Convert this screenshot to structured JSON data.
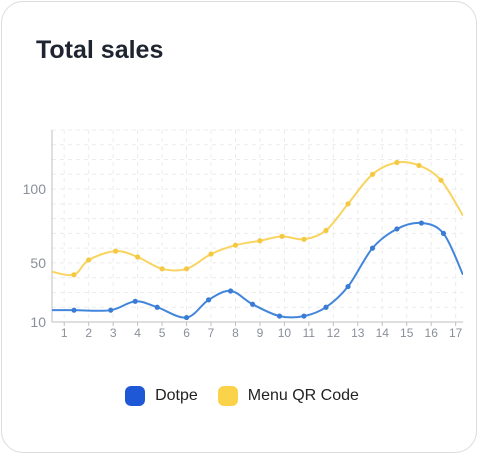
{
  "card": {
    "title": "Total sales"
  },
  "chart_data": {
    "type": "line",
    "title": "Total sales",
    "x": [
      1,
      2,
      3,
      4,
      5,
      6,
      7,
      8,
      9,
      10,
      11,
      12,
      13,
      14,
      15,
      16,
      17
    ],
    "ylim": [
      10,
      140
    ],
    "yticks": [
      10,
      50,
      100
    ],
    "grid": true,
    "legend": "bottom",
    "smooth": true,
    "series": [
      {
        "name": "Dotpe",
        "color": "#4286dc",
        "marker_color": "#3a7bd5",
        "legend_color": "#1f58d6",
        "points": [
          [
            0.5,
            18
          ],
          [
            1.4,
            18
          ],
          [
            2.9,
            18
          ],
          [
            3.9,
            24
          ],
          [
            4.8,
            20
          ],
          [
            6.0,
            13
          ],
          [
            6.9,
            25
          ],
          [
            7.8,
            31
          ],
          [
            8.7,
            22
          ],
          [
            9.8,
            14
          ],
          [
            10.8,
            14
          ],
          [
            11.7,
            20
          ],
          [
            12.6,
            34
          ],
          [
            13.6,
            60
          ],
          [
            14.6,
            73
          ],
          [
            15.6,
            77
          ],
          [
            16.5,
            70
          ],
          [
            17.3,
            42
          ]
        ]
      },
      {
        "name": "Menu QR Code",
        "color": "#f9d460",
        "marker_color": "#f5c842",
        "legend_color": "#fbd34a",
        "points": [
          [
            0.5,
            44
          ],
          [
            1.4,
            42
          ],
          [
            2.0,
            52
          ],
          [
            3.1,
            58
          ],
          [
            4.0,
            54
          ],
          [
            5.0,
            46
          ],
          [
            6.0,
            46
          ],
          [
            7.0,
            56
          ],
          [
            8.0,
            62
          ],
          [
            9.0,
            65
          ],
          [
            9.9,
            68
          ],
          [
            10.8,
            66
          ],
          [
            11.7,
            72
          ],
          [
            12.6,
            90
          ],
          [
            13.6,
            110
          ],
          [
            14.6,
            118
          ],
          [
            15.5,
            116
          ],
          [
            16.4,
            106
          ],
          [
            17.3,
            82
          ]
        ]
      }
    ]
  }
}
